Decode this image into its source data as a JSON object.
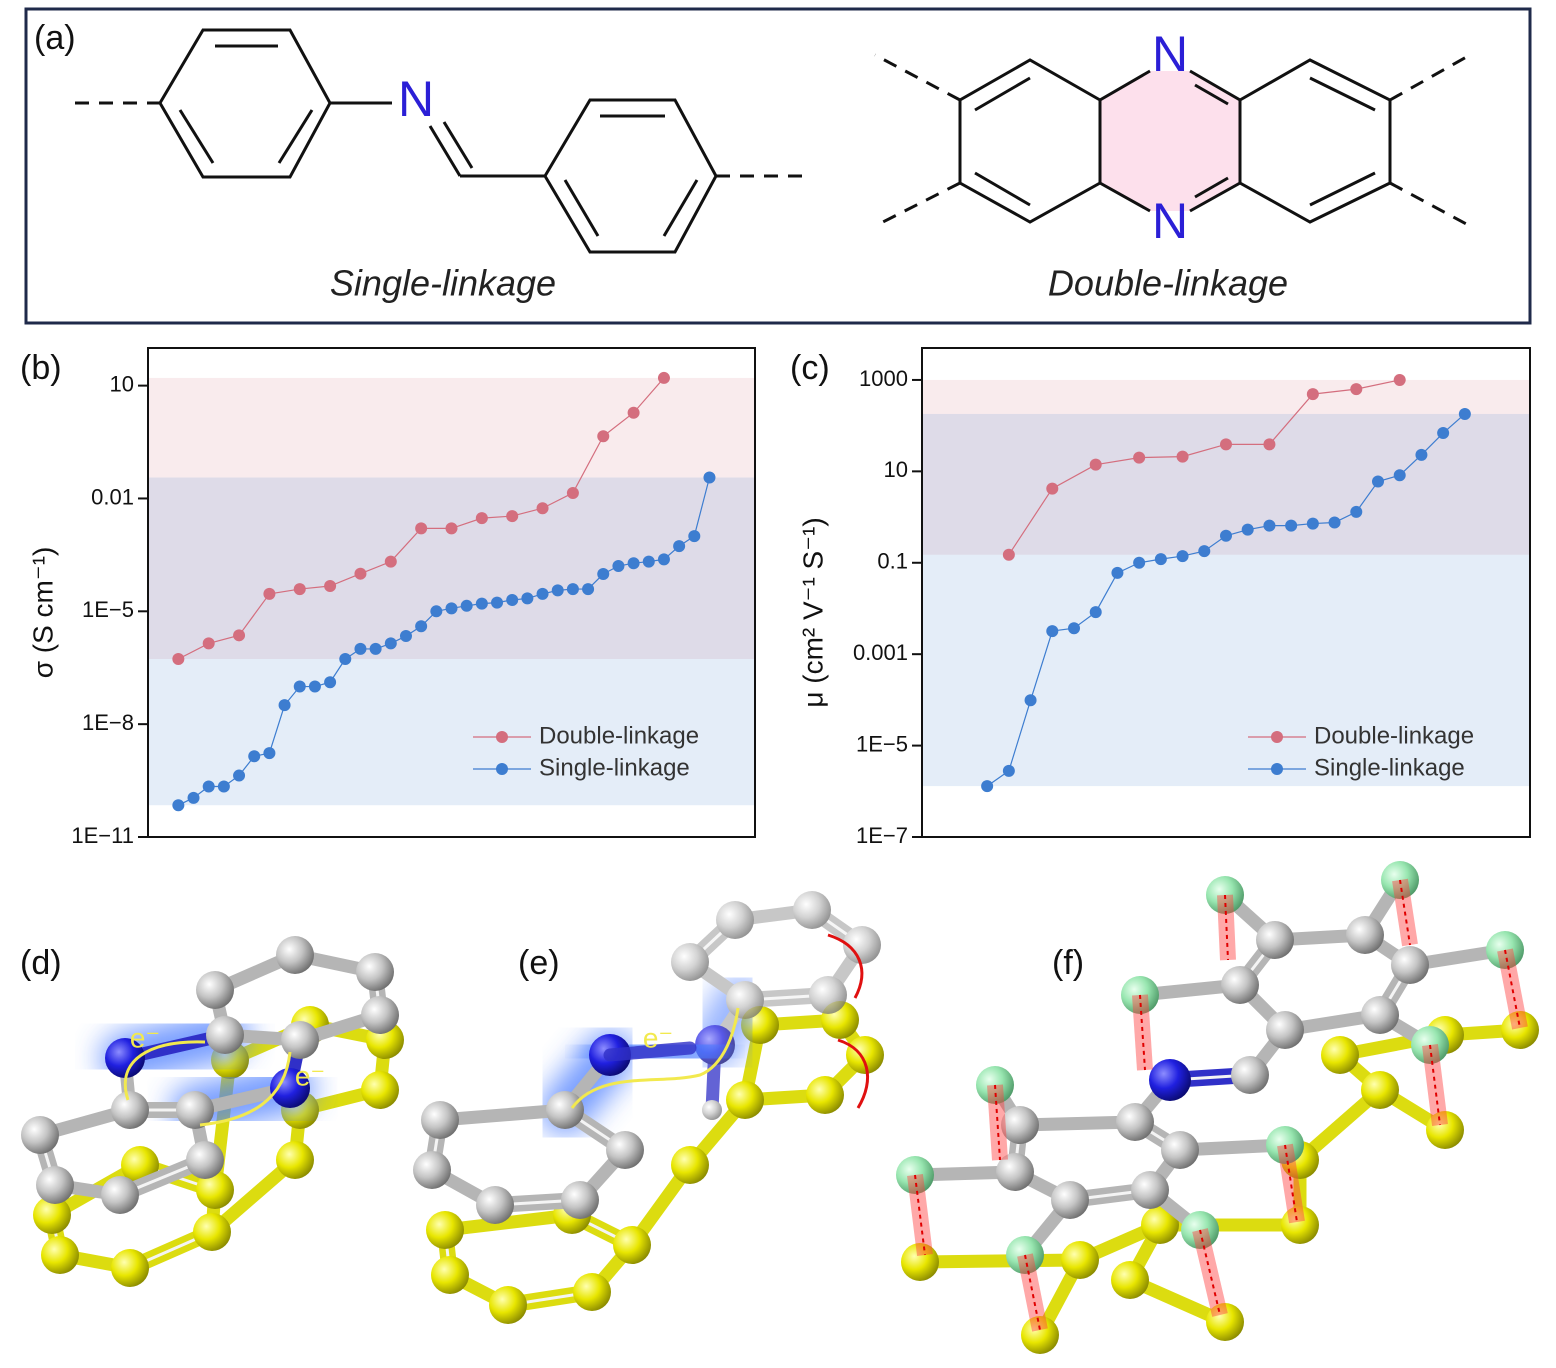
{
  "figure": {
    "panel_labels": [
      "(a)",
      "(b)",
      "(c)",
      "(d)",
      "(e)",
      "(f)"
    ],
    "structures": {
      "single_name": "Single-linkage",
      "double_name": "Double-linkage",
      "atoms": [
        "N",
        "N",
        "N"
      ]
    },
    "electron_labels": [
      "e⁻",
      "e⁻",
      "e⁻"
    ]
  },
  "chart_data": [
    {
      "type": "line",
      "ylabel": "σ (S cm⁻¹)",
      "log_y": true,
      "ylim": [
        1e-11,
        100
      ],
      "xlim": [
        -1,
        39
      ],
      "yticks": [
        {
          "value": 1e-11,
          "label": "1E−11"
        },
        {
          "value": 1e-08,
          "label": "1E−8"
        },
        {
          "value": 1e-05,
          "label": "1E−5"
        },
        0.01,
        10
      ],
      "legend": "lower right",
      "range_bands": true,
      "series": [
        {
          "name": "Double-linkage",
          "color": "#d46e7e",
          "x": [
            1,
            3,
            5,
            7,
            9,
            11,
            13,
            15,
            17,
            19,
            21,
            23,
            25,
            27,
            29,
            31,
            33
          ],
          "values": [
            5.4e-07,
            1.4e-06,
            2.3e-06,
            2.9e-05,
            3.9e-05,
            4.7e-05,
            0.0001,
            0.00021,
            0.0016,
            0.0016,
            0.003,
            0.0034,
            0.0055,
            0.014,
            0.45,
            1.9,
            16
          ]
        },
        {
          "name": "Single-linkage",
          "color": "#3d7dd0",
          "x": [
            1,
            2,
            3,
            4,
            5,
            6,
            7,
            8,
            9,
            10,
            11,
            12,
            13,
            14,
            15,
            16,
            17,
            18,
            19,
            20,
            21,
            22,
            23,
            24,
            25,
            26,
            27,
            28,
            29,
            30,
            31,
            32,
            33,
            34,
            35,
            36
          ],
          "values": [
            7e-11,
            1.1e-10,
            2.2e-10,
            2.2e-10,
            4.3e-10,
            1.4e-09,
            1.7e-09,
            3.2e-08,
            1e-07,
            1e-07,
            1.3e-07,
            5.4e-07,
            1e-06,
            1e-06,
            1.4e-06,
            2.2e-06,
            4e-06,
            1e-05,
            1.2e-05,
            1.4e-05,
            1.6e-05,
            1.7e-05,
            2e-05,
            2.2e-05,
            2.9e-05,
            3.6e-05,
            3.9e-05,
            3.9e-05,
            9.8e-05,
            0.00016,
            0.00019,
            0.00021,
            0.00024,
            0.00054,
            0.001,
            0.036
          ]
        }
      ]
    },
    {
      "type": "line",
      "ylabel": "μ (cm² V⁻¹ S⁻¹)",
      "log_y": true,
      "ylim": [
        1e-07,
        5000
      ],
      "xlim": [
        -2,
        26
      ],
      "yticks": [
        {
          "value": 1e-07,
          "label": "1E−7"
        },
        {
          "value": 1e-05,
          "label": "1E−5"
        },
        0.001,
        0.1,
        10,
        1000
      ],
      "legend": "lower right",
      "range_bands": true,
      "series": [
        {
          "name": "Double-linkage",
          "color": "#d46e7e",
          "x": [
            2,
            4,
            6,
            8,
            10,
            12,
            14,
            16,
            18,
            20
          ],
          "values": [
            0.15,
            4.2,
            14,
            20,
            21,
            39,
            39,
            490,
            630,
            1000
          ]
        },
        {
          "name": "Single-linkage",
          "color": "#3d7dd0",
          "x": [
            1,
            2,
            3,
            4,
            5,
            6,
            7,
            8,
            9,
            10,
            11,
            12,
            13,
            14,
            15,
            16,
            17,
            18,
            19,
            20,
            21,
            22,
            23
          ],
          "values": [
            1.3e-06,
            2.8e-06,
            9.8e-05,
            0.0032,
            0.0037,
            0.0083,
            0.06,
            0.1,
            0.12,
            0.14,
            0.18,
            0.39,
            0.53,
            0.65,
            0.65,
            0.72,
            0.76,
            1.3,
            6.0,
            8.2,
            23,
            69,
            180
          ]
        }
      ]
    }
  ]
}
